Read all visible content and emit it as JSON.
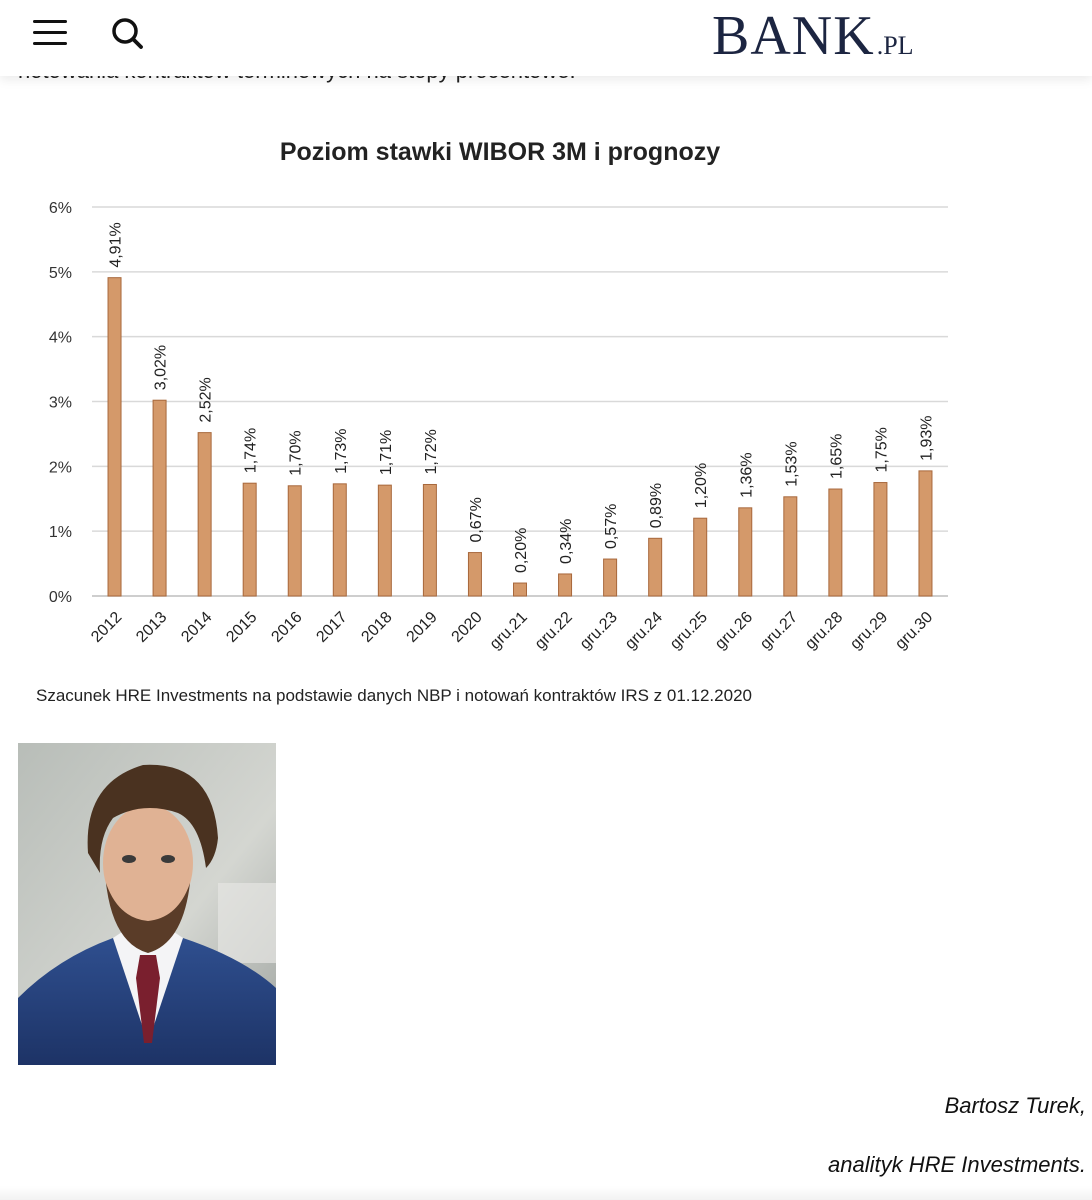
{
  "header": {
    "logo_main": "BANK",
    "logo_suffix": ".PL",
    "menu_icon": "hamburger-menu-icon",
    "search_icon": "search-icon"
  },
  "article": {
    "cut_text": "notowania kontraktów terminowych na stopy procentowe."
  },
  "chart_data": {
    "type": "bar",
    "title": "Poziom stawki WIBOR 3M i prognozy",
    "categories": [
      "2012",
      "2013",
      "2014",
      "2015",
      "2016",
      "2017",
      "2018",
      "2019",
      "2020",
      "gru.21",
      "gru.22",
      "gru.23",
      "gru.24",
      "gru.25",
      "gru.26",
      "gru.27",
      "gru.28",
      "gru.29",
      "gru.30"
    ],
    "values": [
      4.91,
      3.02,
      2.52,
      1.74,
      1.7,
      1.73,
      1.71,
      1.72,
      0.67,
      0.2,
      0.34,
      0.57,
      0.89,
      1.2,
      1.36,
      1.53,
      1.65,
      1.75,
      1.93
    ],
    "data_labels": [
      "4,91%",
      "3,02%",
      "2,52%",
      "1,74%",
      "1,70%",
      "1,73%",
      "1,71%",
      "1,72%",
      "0,67%",
      "0,20%",
      "0,34%",
      "0,57%",
      "0,89%",
      "1,20%",
      "1,36%",
      "1,53%",
      "1,65%",
      "1,75%",
      "1,93%"
    ],
    "y_ticks": [
      "0%",
      "1%",
      "2%",
      "3%",
      "4%",
      "5%",
      "6%"
    ],
    "ylim": [
      0,
      6
    ],
    "grid": true,
    "bar_color": "#d4996a",
    "bar_edge_color": "#a8683c",
    "source": "Szacunek HRE Investments na podstawie danych NBP i notowań kontraktów IRS z 01.12.2020"
  },
  "author": {
    "name": "Bartosz Turek,",
    "role": "analityk HRE Investments."
  }
}
